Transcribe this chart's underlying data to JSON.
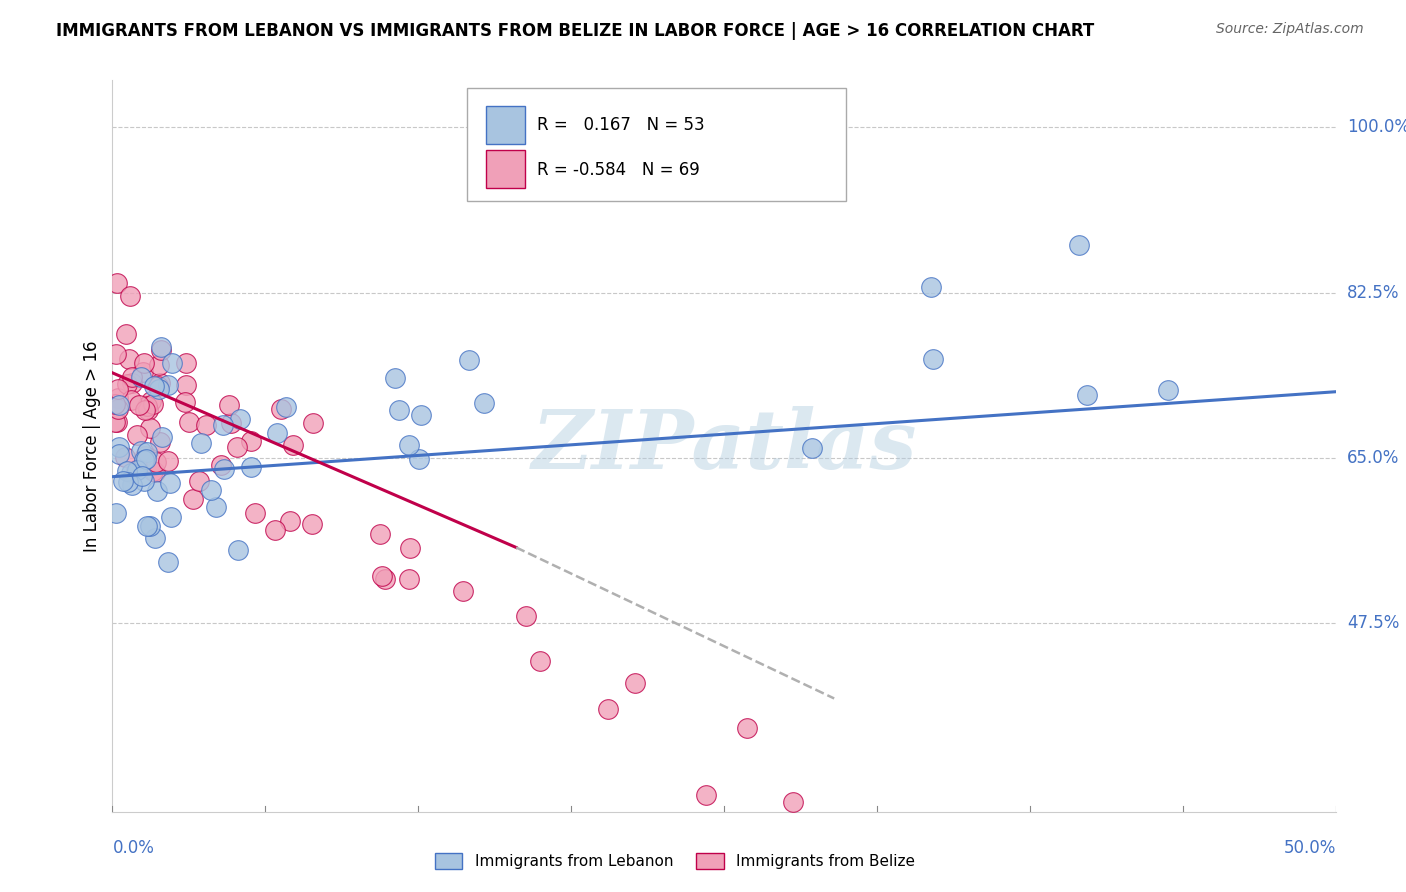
{
  "title": "IMMIGRANTS FROM LEBANON VS IMMIGRANTS FROM BELIZE IN LABOR FORCE | AGE > 16 CORRELATION CHART",
  "source": "Source: ZipAtlas.com",
  "ylabel": "In Labor Force | Age > 16",
  "right_yticks": [
    47.5,
    65.0,
    82.5,
    100.0
  ],
  "right_ytick_labels": [
    "47.5%",
    "65.0%",
    "82.5%",
    "100.0%"
  ],
  "legend_lebanon": "Immigrants from Lebanon",
  "legend_belize": "Immigrants from Belize",
  "R_lebanon": 0.167,
  "N_lebanon": 53,
  "R_belize": -0.584,
  "N_belize": 69,
  "lebanon_color": "#a8c4e0",
  "belize_color": "#f0a0b8",
  "lebanon_line_color": "#4472c4",
  "belize_line_color": "#c0004a",
  "belize_line_dashed_color": "#b0b0b0",
  "watermark": "ZIPatlas",
  "xlim": [
    0,
    0.5
  ],
  "ylim": [
    0.275,
    1.05
  ],
  "marker_size": 200
}
